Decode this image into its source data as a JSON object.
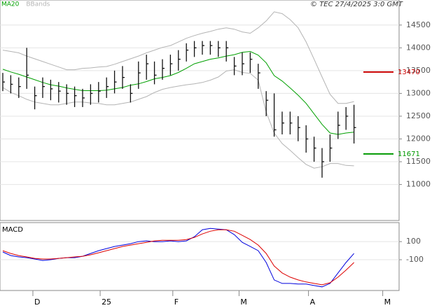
{
  "chart_data": [
    {
      "type": "ohlc",
      "copyright": "© TEC 27/4/2025 3:0 GMT",
      "x": [
        0,
        1,
        2,
        3,
        4,
        5,
        6,
        7,
        8,
        9,
        10,
        11,
        12,
        13,
        14,
        15,
        16,
        17,
        18,
        19,
        20,
        21,
        22,
        23,
        24,
        25,
        26,
        27,
        28,
        29,
        30,
        31,
        32,
        33,
        34,
        35,
        36,
        37,
        38,
        39,
        40,
        41,
        42,
        43,
        44
      ],
      "close": [
        13250,
        13200,
        13150,
        13400,
        12950,
        13150,
        13100,
        13050,
        13000,
        12950,
        12900,
        13000,
        13050,
        13150,
        13250,
        13350,
        13000,
        13450,
        13650,
        13400,
        13550,
        13650,
        13750,
        13950,
        14000,
        14050,
        14050,
        14000,
        14000,
        13600,
        13650,
        13750,
        13450,
        12850,
        12200,
        12350,
        12350,
        12250,
        12000,
        11800,
        11500,
        11800,
        12300,
        12500,
        12250
      ],
      "high": [
        13450,
        13400,
        13350,
        14000,
        13150,
        13350,
        13300,
        13250,
        13200,
        13150,
        13100,
        13200,
        13250,
        13350,
        13500,
        13600,
        13200,
        13700,
        13850,
        13700,
        13750,
        13850,
        13950,
        14100,
        14150,
        14150,
        14150,
        14150,
        14150,
        13800,
        13900,
        13900,
        13650,
        13050,
        13000,
        12600,
        12600,
        12500,
        12300,
        12050,
        11800,
        12100,
        12600,
        12700,
        12750
      ],
      "low": [
        13050,
        13000,
        12900,
        13100,
        12650,
        12900,
        12850,
        12800,
        12750,
        12700,
        12700,
        12750,
        12800,
        12900,
        13000,
        13100,
        12800,
        13100,
        13300,
        13200,
        13300,
        13400,
        13500,
        13700,
        13800,
        13850,
        13850,
        13800,
        13700,
        13400,
        13400,
        13450,
        13100,
        12500,
        12050,
        12100,
        12100,
        11950,
        11700,
        11500,
        11150,
        11500,
        12000,
        12200,
        11900
      ],
      "series": [
        {
          "name": "MA20",
          "color": "#00a000",
          "values": [
            13530,
            13470,
            13420,
            13360,
            13300,
            13240,
            13190,
            13160,
            13120,
            13090,
            13060,
            13060,
            13060,
            13070,
            13100,
            13130,
            13180,
            13210,
            13260,
            13320,
            13350,
            13390,
            13460,
            13550,
            13650,
            13700,
            13750,
            13780,
            13820,
            13850,
            13900,
            13920,
            13840,
            13670,
            13390,
            13270,
            13120,
            12960,
            12780,
            12550,
            12320,
            12130,
            12100,
            12130,
            12150
          ]
        },
        {
          "name": "BBands",
          "color": "#b4b4b4",
          "values": [
            13950,
            13920,
            13890,
            13820,
            13760,
            13700,
            13640,
            13580,
            13520,
            13520,
            13550,
            13560,
            13580,
            13590,
            13640,
            13700,
            13760,
            13820,
            13890,
            13950,
            14010,
            14050,
            14130,
            14210,
            14270,
            14320,
            14360,
            14410,
            14440,
            14410,
            14350,
            14320,
            14440,
            14590,
            14790,
            14750,
            14620,
            14440,
            14130,
            13750,
            13360,
            12980,
            12780,
            12780,
            12820
          ]
        },
        {
          "color": "#b4b4b4",
          "values": [
            13130,
            13020,
            12950,
            12870,
            12810,
            12780,
            12750,
            12750,
            12780,
            12810,
            12810,
            12790,
            12780,
            12750,
            12750,
            12780,
            12810,
            12870,
            12930,
            13020,
            13090,
            13130,
            13160,
            13190,
            13210,
            13240,
            13290,
            13360,
            13490,
            13520,
            13460,
            13440,
            13290,
            12590,
            12130,
            11900,
            11750,
            11590,
            11440,
            11360,
            11390,
            11460,
            11460,
            11420,
            11410
          ]
        }
      ],
      "levels": [
        {
          "value": 13470,
          "color": "#cc0000"
        },
        {
          "value": 11671,
          "color": "#009900"
        }
      ],
      "xlim": [
        -0.35,
        49.65
      ],
      "ylim": [
        10210,
        15050
      ],
      "yticks": [
        11000,
        11500,
        12000,
        12500,
        13000,
        13500,
        14000,
        14500
      ],
      "grid": true
    },
    {
      "type": "line",
      "title": "MACD",
      "x": [
        0,
        1,
        2,
        3,
        4,
        5,
        6,
        7,
        8,
        9,
        10,
        11,
        12,
        13,
        14,
        15,
        16,
        17,
        18,
        19,
        20,
        21,
        22,
        23,
        24,
        25,
        26,
        27,
        28,
        29,
        30,
        31,
        32,
        33,
        34,
        35,
        36,
        37,
        38,
        39,
        40,
        41,
        42,
        43,
        44
      ],
      "series": [
        {
          "color": "#0000dd",
          "values": [
            -15,
            -54,
            -69,
            -77,
            -92,
            -108,
            -100,
            -85,
            -77,
            -77,
            -62,
            -31,
            0,
            23,
            46,
            62,
            77,
            100,
            108,
            100,
            100,
            108,
            100,
            108,
            154,
            231,
            246,
            239,
            231,
            177,
            92,
            46,
            0,
            -131,
            -323,
            -362,
            -362,
            -369,
            -369,
            -385,
            -400,
            -362,
            -246,
            -131,
            -31
          ]
        },
        {
          "color": "#dd0000",
          "values": [
            0,
            -31,
            -54,
            -69,
            -85,
            -92,
            -92,
            -85,
            -77,
            -69,
            -62,
            -46,
            -23,
            0,
            23,
            46,
            62,
            77,
            92,
            108,
            115,
            115,
            115,
            123,
            146,
            185,
            215,
            231,
            231,
            215,
            169,
            123,
            62,
            -31,
            -169,
            -246,
            -292,
            -323,
            -346,
            -362,
            -377,
            -354,
            -292,
            -215,
            -131
          ]
        }
      ],
      "xlim": [
        -0.35,
        49.65
      ],
      "xticks": [
        {
          "value": 3.77,
          "label": "D"
        },
        {
          "value": 12.2,
          "label": "25"
        },
        {
          "value": 21.3,
          "label": "F"
        },
        {
          "value": 29.6,
          "label": "M"
        },
        {
          "value": 38.3,
          "label": "A"
        },
        {
          "value": 47.6,
          "label": "M"
        }
      ],
      "ylim": [
        -440,
        310
      ],
      "yticks": [
        100,
        -100
      ],
      "grid": true
    }
  ]
}
